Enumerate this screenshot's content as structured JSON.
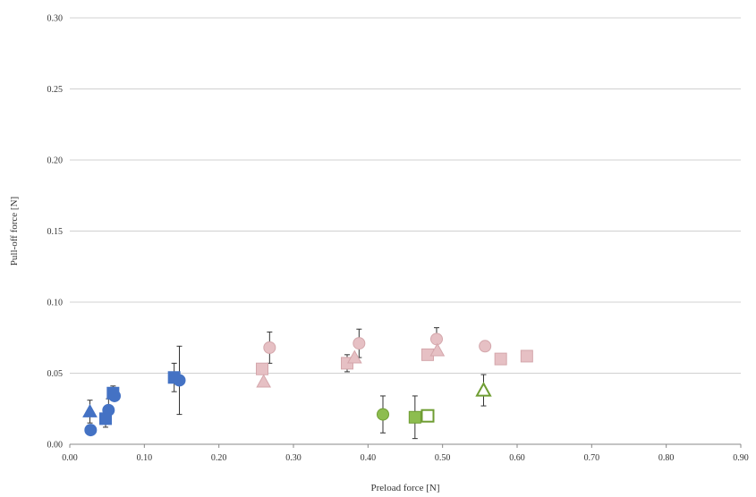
{
  "colors": {
    "blue": "#4472c4",
    "pink": "#e6c0c4",
    "pink_edge": "#d4a6ab",
    "green": "#8dbd4f",
    "green_edge": "#6f9d33",
    "grid": "#d0d0d0",
    "errorbar": "#333333"
  },
  "chart_data": {
    "type": "scatter",
    "title": "",
    "xlabel": "Preload force [N]",
    "ylabel": "Pull-off force [N]",
    "xlim": [
      0,
      0.9
    ],
    "ylim": [
      0,
      0.3
    ],
    "x_ticks": [
      "0.00",
      "0.10",
      "0.20",
      "0.30",
      "0.40",
      "0.50",
      "0.60",
      "0.70",
      "0.80",
      "0.90"
    ],
    "y_ticks": [
      "0.00",
      "0.05",
      "0.10",
      "0.15",
      "0.20",
      "0.25",
      "0.30"
    ],
    "grid": "horizontal",
    "legend": "none",
    "series": [
      {
        "color": "blue",
        "points": [
          {
            "x": 0.028,
            "y": 0.01,
            "marker": "circle",
            "fill": "solid"
          },
          {
            "x": 0.027,
            "y": 0.023,
            "marker": "triangle",
            "fill": "solid",
            "err": 0.008
          },
          {
            "x": 0.048,
            "y": 0.018,
            "marker": "square",
            "fill": "solid",
            "err": 0.006
          },
          {
            "x": 0.052,
            "y": 0.024,
            "marker": "circle",
            "fill": "solid",
            "err": 0.008
          },
          {
            "x": 0.058,
            "y": 0.036,
            "marker": "square",
            "fill": "solid",
            "err": 0.005
          },
          {
            "x": 0.06,
            "y": 0.034,
            "marker": "circle",
            "fill": "solid"
          },
          {
            "x": 0.14,
            "y": 0.047,
            "marker": "square",
            "fill": "solid",
            "err": 0.01
          },
          {
            "x": 0.147,
            "y": 0.045,
            "marker": "circle",
            "fill": "solid",
            "err": 0.024
          }
        ]
      },
      {
        "color": "pink",
        "points": [
          {
            "x": 0.258,
            "y": 0.053,
            "marker": "square",
            "fill": "solid"
          },
          {
            "x": 0.26,
            "y": 0.044,
            "marker": "triangle",
            "fill": "solid"
          },
          {
            "x": 0.268,
            "y": 0.068,
            "marker": "circle",
            "fill": "solid",
            "err": 0.011
          },
          {
            "x": 0.372,
            "y": 0.057,
            "marker": "square",
            "fill": "solid",
            "err": 0.006
          },
          {
            "x": 0.382,
            "y": 0.061,
            "marker": "triangle",
            "fill": "solid"
          },
          {
            "x": 0.388,
            "y": 0.071,
            "marker": "circle",
            "fill": "solid",
            "err": 0.01
          },
          {
            "x": 0.48,
            "y": 0.063,
            "marker": "square",
            "fill": "solid"
          },
          {
            "x": 0.492,
            "y": 0.074,
            "marker": "circle",
            "fill": "solid",
            "err": 0.008
          },
          {
            "x": 0.493,
            "y": 0.066,
            "marker": "triangle",
            "fill": "solid"
          },
          {
            "x": 0.557,
            "y": 0.069,
            "marker": "circle",
            "fill": "solid"
          },
          {
            "x": 0.578,
            "y": 0.06,
            "marker": "square",
            "fill": "solid"
          },
          {
            "x": 0.613,
            "y": 0.062,
            "marker": "square",
            "fill": "solid"
          }
        ]
      },
      {
        "color": "green",
        "points": [
          {
            "x": 0.42,
            "y": 0.021,
            "marker": "circle",
            "fill": "solid",
            "err": 0.013
          },
          {
            "x": 0.463,
            "y": 0.019,
            "marker": "square",
            "fill": "solid",
            "err": 0.015
          },
          {
            "x": 0.48,
            "y": 0.02,
            "marker": "square",
            "fill": "open"
          },
          {
            "x": 0.555,
            "y": 0.038,
            "marker": "triangle",
            "fill": "open",
            "err": 0.011
          }
        ]
      }
    ]
  }
}
